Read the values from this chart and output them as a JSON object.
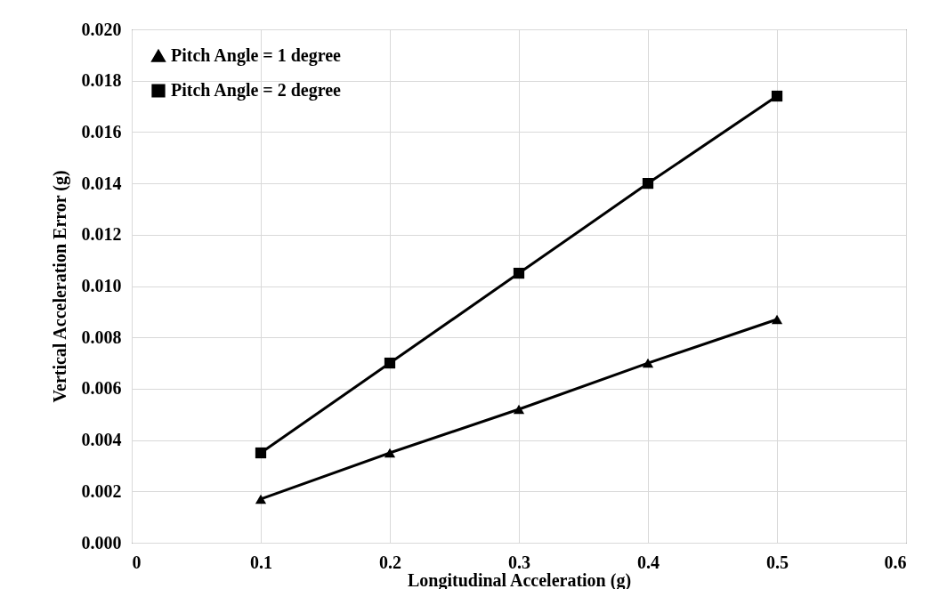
{
  "chart_data": {
    "type": "line",
    "xlabel": "Longitudinal Acceleration (g)",
    "ylabel": "Vertical  Acceleration Error (g)",
    "x": [
      0.1,
      0.2,
      0.3,
      0.4,
      0.5
    ],
    "series": [
      {
        "name": "Pitch Angle = 1 degree",
        "color": "#000000",
        "marker": "triangle",
        "values": [
          0.0017,
          0.0035,
          0.0052,
          0.007,
          0.0087
        ]
      },
      {
        "name": "Pitch Angle = 2 degree",
        "color": "#000000",
        "marker": "square",
        "values": [
          0.0035,
          0.007,
          0.0105,
          0.014,
          0.0174
        ]
      }
    ],
    "xlim": [
      0,
      0.6
    ],
    "xticks": [
      0,
      0.1,
      0.2,
      0.3,
      0.4,
      0.5,
      0.6
    ],
    "ylim": [
      0,
      0.02
    ],
    "yticks": [
      {
        "value": 0,
        "label": "0.000"
      },
      {
        "value": 0.002,
        "label": "0.002"
      },
      {
        "value": 0.004,
        "label": "0.004"
      },
      {
        "value": 0.006,
        "label": "0.006"
      },
      {
        "value": 0.008,
        "label": "0.008"
      },
      {
        "value": 0.01,
        "label": "0.010"
      },
      {
        "value": 0.012,
        "label": "0.012"
      },
      {
        "value": 0.014,
        "label": "0.014"
      },
      {
        "value": 0.016,
        "label": "0.016"
      },
      {
        "value": 0.018,
        "label": "0.018"
      },
      {
        "value": 0.02,
        "label": "0.020"
      }
    ],
    "grid": true,
    "legend": "top left",
    "line_style": "solid"
  }
}
